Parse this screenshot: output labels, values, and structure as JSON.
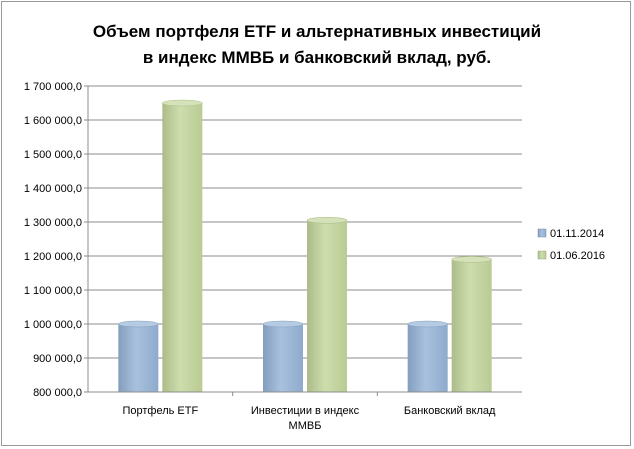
{
  "chart_data": {
    "type": "bar",
    "title": [
      "Объем портфеля ETF и альтернативных  инвестиций",
      "в индекс ММВБ и банковский  вклад,  руб."
    ],
    "categories": [
      [
        "Портфель ETF"
      ],
      [
        "Инвестиции в индекс",
        "ММВБ"
      ],
      [
        "Банковский вклад"
      ]
    ],
    "series": [
      {
        "name": "01.11.2014",
        "values": [
          1000000,
          1000000,
          1000000
        ],
        "color": "#95b3d7"
      },
      {
        "name": "01.06.2016",
        "values": [
          1650000,
          1305000,
          1190000
        ],
        "color": "#c3d69b"
      }
    ],
    "ylim": [
      800000,
      1700000
    ],
    "ytick_labels": [
      "800 000,0",
      "900 000,0",
      "1 000 000,0",
      "1 100 000,0",
      "1 200 000,0",
      "1 300 000,0",
      "1 400 000,0",
      "1 500 000,0",
      "1 600 000,0",
      "1 700 000,0"
    ],
    "yticks": [
      800000,
      900000,
      1000000,
      1100000,
      1200000,
      1300000,
      1400000,
      1500000,
      1600000,
      1700000
    ],
    "grid": true,
    "legend": "right"
  }
}
